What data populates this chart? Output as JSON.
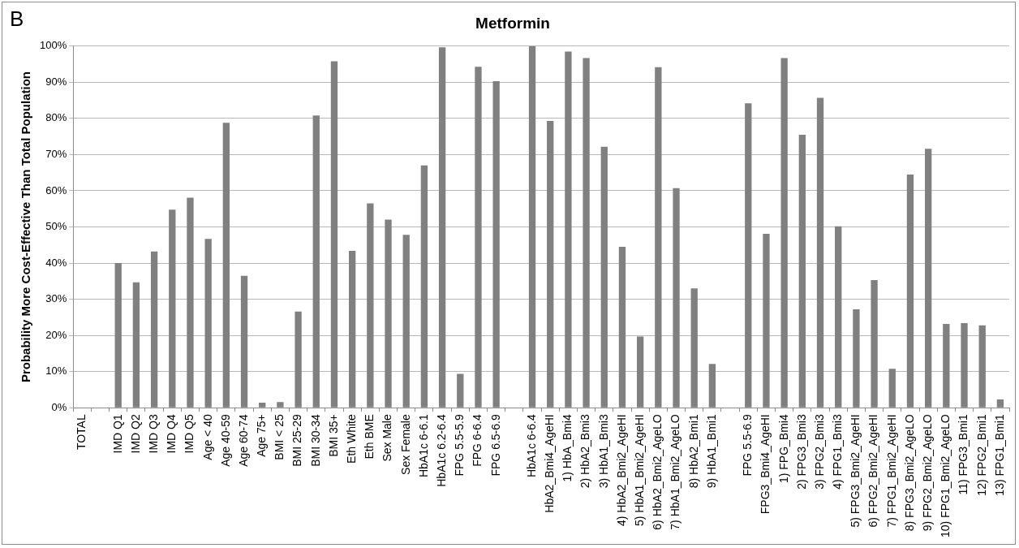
{
  "chart_data": {
    "type": "bar",
    "title": "Metformin",
    "ylabel": "Probability More Cost-Effective Than Total Population",
    "annotations": [
      "B"
    ],
    "categories": [
      "TOTAL",
      null,
      "IMD Q1",
      "IMD Q2",
      "IMD Q3",
      "IMD Q4",
      "IMD Q5",
      "Age < 40",
      "Age 40-59",
      "Age 60-74",
      "Age 75+",
      "BMI < 25",
      "BMI 25-29",
      "BMI 30-34",
      "BMI 35+",
      "Eth White",
      "Eth BME",
      "Sex Male",
      "Sex Female",
      "HbA1c 6-6.1",
      "HbA1c 6.2-6.4",
      "FPG 5.5-5.9",
      "FPG 6-6.4",
      "FPG 6.5-6.9",
      null,
      "HbA1c 6-6.4",
      "HbA2_Bmi4_AgeHI",
      "1) HbA_Bmi4",
      "2) HbA2_Bmi3",
      "3) HbA1_Bmi3",
      "4) HbA2_Bmi2_AgeHI",
      "5) HbA1_Bmi2_AgeHI",
      "6) HbA2_Bmi2_AgeLO",
      "7) HbA1_Bmi2_AgeLO",
      "8) HbA2_Bmi1",
      "9) HbA1_Bmi1",
      null,
      "FPG 5.5-6.9",
      "FPG3_Bmi4_AgeHI",
      "1) FPG_Bmi4",
      "2) FPG3_Bmi3",
      "3) FPG2_Bmi3",
      "4) FPG1_Bmi3",
      "5) FPG3_Bmi2_AgeHI",
      "6) FPG2_Bmi2_AgeHI",
      "7) FPG1_Bmi2_AgeHI",
      "8) FPG3_Bmi2_AgeLO",
      "9) FPG2_Bmi2_AgeLO",
      "10) FPG1_Bmi2_AgeLO",
      "11) FPG3_Bmi1",
      "12) FPG2_Bmi1",
      "13) FPG1_Bmi1"
    ],
    "values": [
      0,
      null,
      40,
      34.7,
      43.2,
      54.8,
      58.1,
      46.7,
      78.8,
      36.5,
      1.4,
      1.6,
      26.6,
      80.8,
      95.8,
      43.4,
      56.5,
      52.0,
      47.8,
      67,
      99.7,
      9.4,
      94.3,
      90.3,
      null,
      100,
      79.3,
      98.5,
      96.7,
      72.2,
      44.5,
      19.7,
      94.2,
      60.7,
      33.0,
      12.1,
      null,
      84.2,
      48.1,
      96.7,
      75.5,
      85.7,
      50.2,
      27.2,
      35.3,
      10.8,
      64.5,
      71.6,
      23.2,
      23.4,
      22.8,
      2.3
    ],
    "color": "#808080",
    "ylim": [
      0,
      100
    ],
    "yticks": [
      {
        "value": 0,
        "label": "0%"
      },
      {
        "value": 10,
        "label": "10%"
      },
      {
        "value": 20,
        "label": "20%"
      },
      {
        "value": 30,
        "label": "30%"
      },
      {
        "value": 40,
        "label": "40%"
      },
      {
        "value": 50,
        "label": "50%"
      },
      {
        "value": 60,
        "label": "60%"
      },
      {
        "value": 70,
        "label": "70%"
      },
      {
        "value": 80,
        "label": "80%"
      },
      {
        "value": 90,
        "label": "90%"
      },
      {
        "value": 100,
        "label": "100%"
      }
    ],
    "grid": "y",
    "legend": false
  }
}
